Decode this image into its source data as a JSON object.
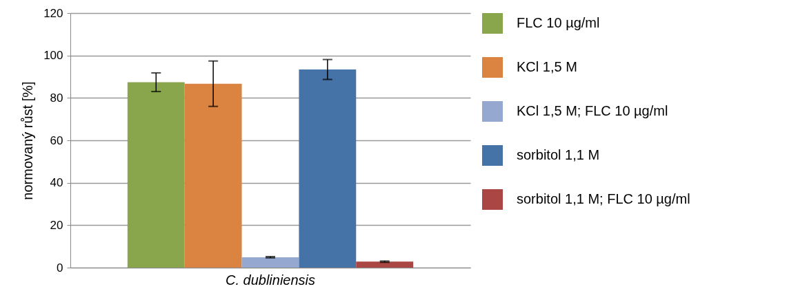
{
  "chart_data": {
    "type": "bar",
    "ylabel": "normovaný růst [%]",
    "categories": [
      "C. dubliniensis"
    ],
    "series": [
      {
        "name": "FLC 10 µg/ml",
        "color": "#8aa64c",
        "values": [
          87.4
        ],
        "errors": [
          4.4
        ]
      },
      {
        "name": "KCl 1,5 M",
        "color": "#db8340",
        "values": [
          86.7
        ],
        "errors": [
          10.7
        ]
      },
      {
        "name": "KCl 1,5 M; FLC 10 µg/ml",
        "color": "#95a9d0",
        "values": [
          4.9
        ],
        "errors": [
          0.3
        ]
      },
      {
        "name": "sorbitol 1,1 M",
        "color": "#4572a7",
        "values": [
          93.4
        ],
        "errors": [
          4.7
        ]
      },
      {
        "name": "sorbitol 1,1 M; FLC 10 µg/ml",
        "color": "#aa4643",
        "values": [
          2.8
        ],
        "errors": [
          0.3
        ]
      }
    ],
    "ylim": [
      0,
      120
    ],
    "yticks": [
      0,
      20,
      40,
      60,
      80,
      100,
      120
    ],
    "grid": "y",
    "legend": "right"
  }
}
